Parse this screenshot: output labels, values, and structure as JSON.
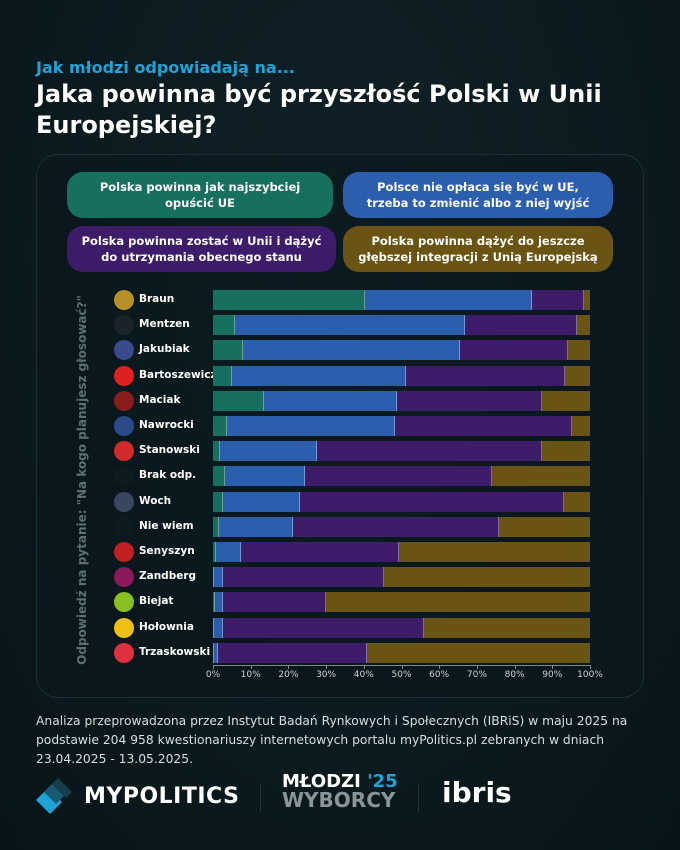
{
  "header": {
    "subtitle": "Jak młodzi odpowiadają na...",
    "title": "Jaka powinna być przyszłość Polski w Unii Europejskiej?"
  },
  "chart_data": {
    "type": "bar",
    "stacked": true,
    "orientation": "horizontal",
    "ylabel": "Odpowiedź na pytanie: \"Na kogo planujesz głosować?\"",
    "xlim": [
      0,
      100
    ],
    "xticks": [
      "0%",
      "10%",
      "20%",
      "30%",
      "40%",
      "50%",
      "60%",
      "70%",
      "80%",
      "90%",
      "100%"
    ],
    "legend_placement": "top",
    "categories": [
      "Braun",
      "Mentzen",
      "Jakubiak",
      "Bartoszewicz",
      "Maciak",
      "Nawrocki",
      "Stanowski",
      "Brak odp.",
      "Woch",
      "Nie wiem",
      "Senyszyn",
      "Zandberg",
      "Biejat",
      "Hołownia",
      "Trzaskowski"
    ],
    "series": [
      {
        "name": "Polska powinna jak najszybciej opuścić UE",
        "color": "#17705f",
        "values": [
          40.2,
          5.8,
          8.0,
          5.0,
          13.5,
          3.6,
          1.8,
          3.1,
          2.7,
          1.5,
          0.7,
          0.2,
          0.4,
          0.2,
          0.2
        ]
      },
      {
        "name": "Polsce nie opłaca się być w UE, trzeba to zmienić albo z niej wyjść",
        "color": "#2b5fae",
        "values": [
          44.4,
          61.1,
          57.5,
          46.3,
          35.4,
          44.7,
          25.8,
          21.4,
          20.5,
          19.6,
          6.8,
          2.5,
          2.3,
          2.4,
          1.1
        ]
      },
      {
        "name": "Polska powinna zostać w Unii i dążyć do utrzymania obecnego stanu",
        "color": "#3d1c6a",
        "values": [
          13.7,
          29.7,
          28.7,
          42.1,
          38.4,
          47.0,
          59.6,
          49.6,
          70.0,
          54.8,
          41.8,
          42.7,
          27.2,
          53.4,
          39.6
        ]
      },
      {
        "name": "Polska powinna dążyć do jeszcze głębszej integracji z Unią Europejską",
        "color": "#6a5414",
        "values": [
          1.7,
          3.4,
          5.8,
          6.6,
          12.7,
          4.7,
          12.8,
          25.9,
          6.8,
          24.1,
          50.7,
          54.6,
          70.1,
          44.0,
          59.1
        ]
      }
    ]
  },
  "footer": {
    "note": "Analiza przeprowadzona przez Instytut Badań Rynkowych i Społecznych (IBRiS) w maju 2025 na podstawie 204 958 kwestionariuszy internetowych portalu myPolitics.pl zebranych w dniach 23.04.2025 - 13.05.2025.",
    "logo1": "MYPOLITICS",
    "logo2_a": "MŁODZI",
    "logo2_b": "'25",
    "logo2_c": "WYBORCY",
    "logo3": "ibris"
  }
}
